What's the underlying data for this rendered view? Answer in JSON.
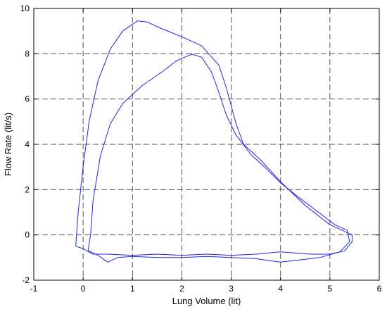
{
  "chart_data": {
    "type": "line",
    "xlabel": "Lung Volume (lit)",
    "ylabel": "Flow Rate (lit/s)",
    "xlim": [
      -1,
      6
    ],
    "ylim": [
      -2,
      10
    ],
    "x_ticks": [
      "-1",
      "0",
      "1",
      "2",
      "3",
      "4",
      "5",
      "6"
    ],
    "y_ticks": [
      "-2",
      "0",
      "2",
      "4",
      "6",
      "8",
      "10"
    ],
    "grid": true,
    "legend": "none",
    "series": [
      {
        "color": "#2323e6",
        "points": [
          [
            0.0,
            -0.6
          ],
          [
            -0.15,
            -0.5
          ],
          [
            -0.1,
            1.0
          ],
          [
            0.0,
            3.0
          ],
          [
            0.12,
            5.0
          ],
          [
            0.3,
            6.8
          ],
          [
            0.55,
            8.2
          ],
          [
            0.8,
            9.0
          ],
          [
            1.1,
            9.45
          ],
          [
            1.3,
            9.4
          ],
          [
            1.6,
            9.1
          ],
          [
            2.0,
            8.75
          ],
          [
            2.4,
            8.35
          ],
          [
            2.75,
            7.5
          ],
          [
            2.9,
            6.5
          ],
          [
            3.1,
            4.9
          ],
          [
            3.25,
            4.0
          ],
          [
            3.6,
            3.3
          ],
          [
            4.0,
            2.35
          ],
          [
            4.5,
            1.3
          ],
          [
            5.0,
            0.45
          ],
          [
            5.3,
            0.15
          ],
          [
            5.45,
            0.0
          ],
          [
            5.45,
            -0.3
          ],
          [
            5.3,
            -0.7
          ],
          [
            5.0,
            -0.85
          ],
          [
            4.6,
            -0.85
          ],
          [
            4.3,
            -0.8
          ],
          [
            4.0,
            -0.75
          ],
          [
            3.5,
            -0.85
          ],
          [
            3.0,
            -0.9
          ],
          [
            2.5,
            -0.85
          ],
          [
            2.0,
            -0.9
          ],
          [
            1.5,
            -0.85
          ],
          [
            1.0,
            -0.9
          ],
          [
            0.5,
            -0.85
          ],
          [
            0.2,
            -0.85
          ],
          [
            0.0,
            -0.6
          ]
        ]
      },
      {
        "color": "#2323e6",
        "points": [
          [
            0.15,
            0.0
          ],
          [
            0.2,
            1.5
          ],
          [
            0.35,
            3.5
          ],
          [
            0.55,
            4.9
          ],
          [
            0.8,
            5.8
          ],
          [
            1.2,
            6.6
          ],
          [
            1.6,
            7.2
          ],
          [
            1.9,
            7.7
          ],
          [
            2.2,
            7.98
          ],
          [
            2.4,
            7.85
          ],
          [
            2.6,
            7.2
          ],
          [
            2.75,
            6.3
          ],
          [
            2.9,
            5.3
          ],
          [
            3.1,
            4.4
          ],
          [
            3.4,
            3.55
          ],
          [
            3.7,
            2.95
          ],
          [
            4.0,
            2.3
          ],
          [
            4.4,
            1.6
          ],
          [
            4.8,
            0.95
          ],
          [
            5.1,
            0.45
          ],
          [
            5.35,
            0.2
          ],
          [
            5.4,
            -0.3
          ],
          [
            5.2,
            -0.75
          ],
          [
            4.8,
            -1.0
          ],
          [
            4.4,
            -1.1
          ],
          [
            4.0,
            -1.2
          ],
          [
            3.5,
            -1.05
          ],
          [
            3.0,
            -1.0
          ],
          [
            2.5,
            -0.95
          ],
          [
            2.0,
            -1.0
          ],
          [
            1.5,
            -1.0
          ],
          [
            1.0,
            -0.95
          ],
          [
            0.7,
            -1.0
          ],
          [
            0.5,
            -1.2
          ],
          [
            0.3,
            -0.9
          ],
          [
            0.1,
            -0.7
          ],
          [
            0.15,
            0.0
          ]
        ]
      }
    ]
  }
}
